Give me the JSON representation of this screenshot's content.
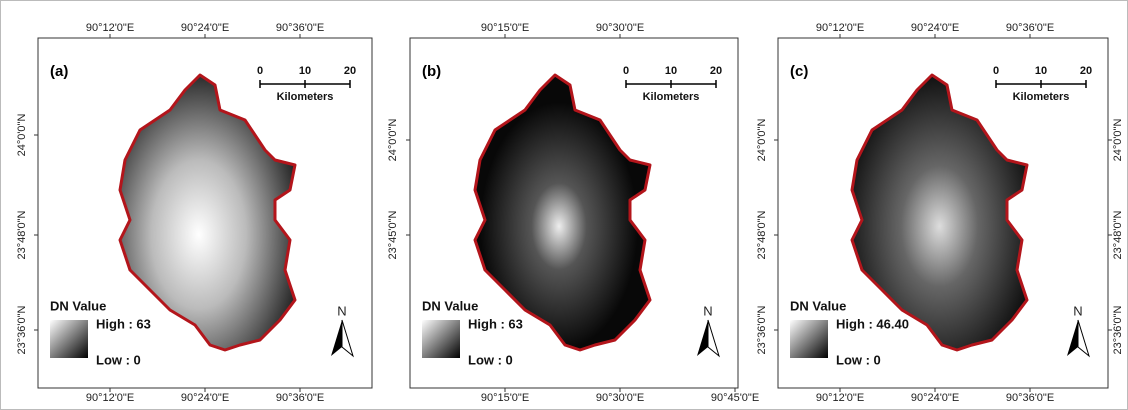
{
  "panels": [
    {
      "label": "(a)",
      "top_labels": [
        "90°12'0\"E",
        "90°24'0\"E",
        "90°36'0\"E"
      ],
      "bottom_labels": [
        "90°12'0\"E",
        "90°24'0\"E",
        "90°36'0\"E"
      ],
      "left_labels": [
        "24°0'0\"N",
        "23°48'0\"N",
        "23°36'0\"N"
      ],
      "right_labels": [],
      "scale": {
        "ticks": [
          "0",
          "10",
          "20"
        ],
        "unit": "Kilometers"
      },
      "legend": {
        "title": "DN Value",
        "high": "High : 63",
        "low": "Low : 0"
      },
      "north": "N"
    },
    {
      "label": "(b)",
      "top_labels": [
        "90°15'0\"E",
        "90°30'0\"E"
      ],
      "bottom_labels": [
        "90°15'0\"E",
        "90°30'0\"E",
        "90°45'0\"E"
      ],
      "left_labels": [
        "24°0'0\"N",
        "23°45'0\"N"
      ],
      "right_labels": [],
      "scale": {
        "ticks": [
          "0",
          "10",
          "20"
        ],
        "unit": "Kilometers"
      },
      "legend": {
        "title": "DN Value",
        "high": "High : 63",
        "low": "Low : 0"
      },
      "north": "N"
    },
    {
      "label": "(c)",
      "top_labels": [
        "90°12'0\"E",
        "90°24'0\"E",
        "90°36'0\"E"
      ],
      "bottom_labels": [
        "90°12'0\"E",
        "90°24'0\"E",
        "90°36'0\"E"
      ],
      "left_labels": [
        "24°0'0\"N",
        "23°48'0\"N",
        "23°36'0\"N"
      ],
      "right_labels": [
        "24°0'0\"N",
        "23°48'0\"N",
        "23°36'0\"N"
      ],
      "scale": {
        "ticks": [
          "0",
          "10",
          "20"
        ],
        "unit": "Kilometers"
      },
      "legend": {
        "title": "DN Value",
        "high": "High : 46.40",
        "low": "Low : 0"
      },
      "north": "N"
    }
  ]
}
